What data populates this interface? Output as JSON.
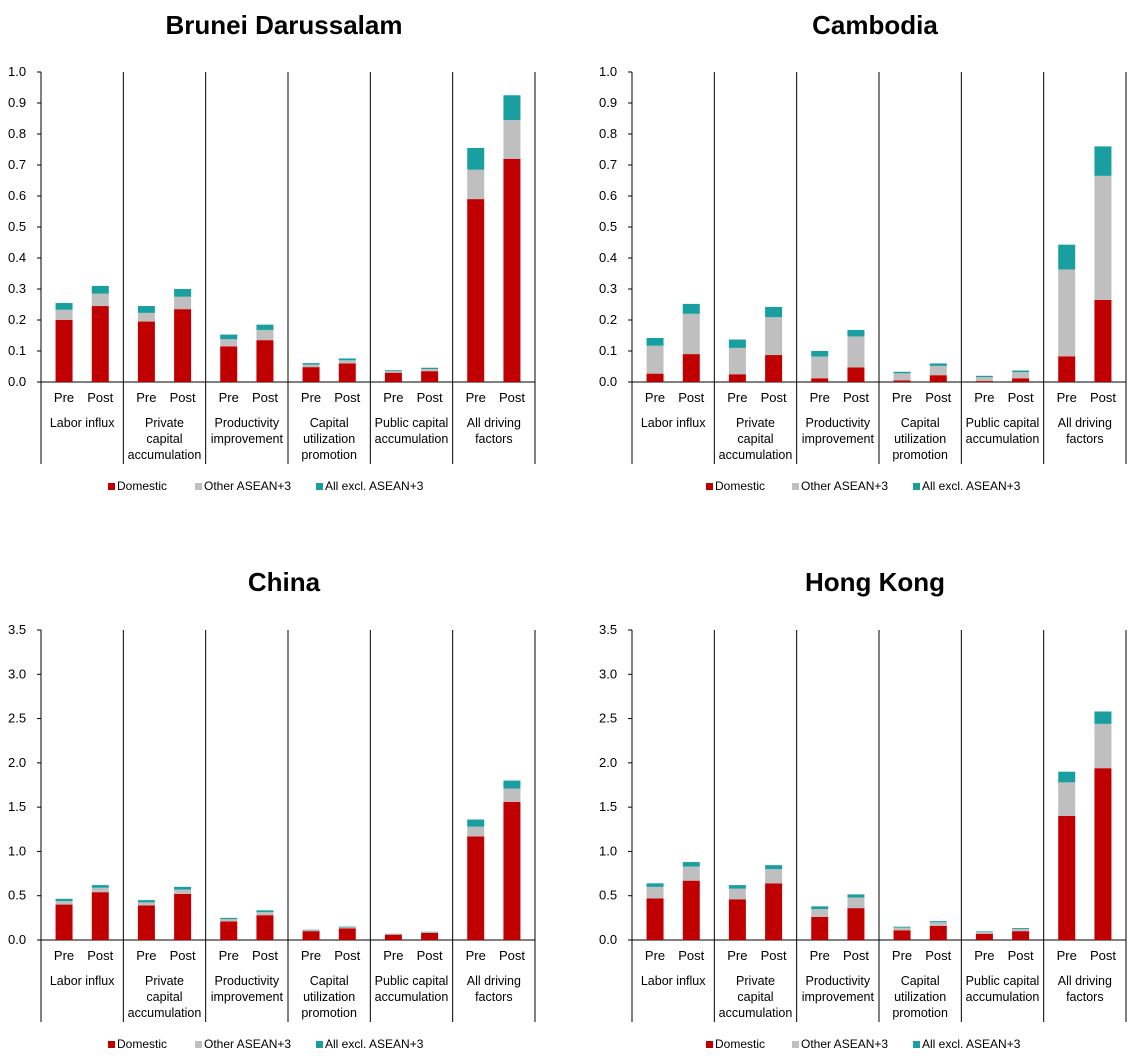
{
  "chart_data": [
    {
      "type": "bar",
      "stacked": true,
      "title": "Brunei Darussalam",
      "groups": [
        "Labor influx",
        "Private capital accumulation",
        "Productivity improvement",
        "Capital utilization promotion",
        "Public capital accumulation",
        "All driving factors"
      ],
      "subcategories": [
        "Pre",
        "Post"
      ],
      "ylim": [
        0,
        1.0
      ],
      "yticks": [
        "0.0",
        "0.1",
        "0.2",
        "0.3",
        "0.4",
        "0.5",
        "0.6",
        "0.7",
        "0.8",
        "0.9",
        "1.0"
      ],
      "series": [
        {
          "name": "Domestic",
          "color": "#c00000",
          "values": [
            0.2,
            0.245,
            0.195,
            0.235,
            0.115,
            0.135,
            0.048,
            0.06,
            0.03,
            0.035,
            0.59,
            0.72
          ]
        },
        {
          "name": "Other ASEAN+3",
          "color": "#bfbfbf",
          "values": [
            0.033,
            0.04,
            0.028,
            0.04,
            0.023,
            0.033,
            0.008,
            0.01,
            0.005,
            0.007,
            0.095,
            0.125
          ]
        },
        {
          "name": "All excl. ASEAN+3",
          "color": "#1a9fa0",
          "values": [
            0.022,
            0.025,
            0.022,
            0.025,
            0.015,
            0.017,
            0.005,
            0.006,
            0.003,
            0.004,
            0.07,
            0.08
          ]
        }
      ],
      "legend": "bottom"
    },
    {
      "type": "bar",
      "stacked": true,
      "title": "Cambodia",
      "groups": [
        "Labor influx",
        "Private capital accumulation",
        "Productivity improvement",
        "Capital utilization promotion",
        "Public capital accumulation",
        "All driving factors"
      ],
      "subcategories": [
        "Pre",
        "Post"
      ],
      "ylim": [
        0,
        1.0
      ],
      "yticks": [
        "0.0",
        "0.1",
        "0.2",
        "0.3",
        "0.4",
        "0.5",
        "0.6",
        "0.7",
        "0.8",
        "0.9",
        "1.0"
      ],
      "series": [
        {
          "name": "Domestic",
          "color": "#c00000",
          "values": [
            0.027,
            0.09,
            0.025,
            0.087,
            0.012,
            0.047,
            0.005,
            0.022,
            0.003,
            0.012,
            0.083,
            0.265
          ]
        },
        {
          "name": "Other ASEAN+3",
          "color": "#bfbfbf",
          "values": [
            0.09,
            0.13,
            0.085,
            0.122,
            0.07,
            0.1,
            0.023,
            0.03,
            0.013,
            0.02,
            0.28,
            0.4
          ]
        },
        {
          "name": "All excl. ASEAN+3",
          "color": "#1a9fa0",
          "values": [
            0.025,
            0.032,
            0.027,
            0.033,
            0.018,
            0.021,
            0.005,
            0.008,
            0.004,
            0.005,
            0.08,
            0.095
          ]
        }
      ],
      "legend": "bottom"
    },
    {
      "type": "bar",
      "stacked": true,
      "title": "China",
      "groups": [
        "Labor influx",
        "Private capital accumulation",
        "Productivity improvement",
        "Capital utilization promotion",
        "Public capital accumulation",
        "All driving factors"
      ],
      "subcategories": [
        "Pre",
        "Post"
      ],
      "ylim": [
        0,
        3.5
      ],
      "yticks": [
        "0.0",
        "0.5",
        "1.0",
        "1.5",
        "2.0",
        "2.5",
        "3.0",
        "3.5"
      ],
      "series": [
        {
          "name": "Domestic",
          "color": "#c00000",
          "values": [
            0.4,
            0.54,
            0.39,
            0.52,
            0.21,
            0.28,
            0.1,
            0.13,
            0.06,
            0.08,
            1.17,
            1.56
          ]
        },
        {
          "name": "Other ASEAN+3",
          "color": "#bfbfbf",
          "values": [
            0.04,
            0.05,
            0.035,
            0.05,
            0.025,
            0.035,
            0.01,
            0.013,
            0.006,
            0.008,
            0.11,
            0.15
          ]
        },
        {
          "name": "All excl. ASEAN+3",
          "color": "#1a9fa0",
          "values": [
            0.025,
            0.03,
            0.025,
            0.03,
            0.015,
            0.02,
            0.006,
            0.008,
            0.004,
            0.005,
            0.08,
            0.09
          ]
        }
      ],
      "legend": "bottom"
    },
    {
      "type": "bar",
      "stacked": true,
      "title": "Hong Kong",
      "groups": [
        "Labor influx",
        "Private capital accumulation",
        "Productivity improvement",
        "Capital utilization promotion",
        "Public capital accumulation",
        "All driving factors"
      ],
      "subcategories": [
        "Pre",
        "Post"
      ],
      "ylim": [
        0,
        3.5
      ],
      "yticks": [
        "0.0",
        "0.5",
        "1.0",
        "1.5",
        "2.0",
        "2.5",
        "3.0",
        "3.5"
      ],
      "series": [
        {
          "name": "Domestic",
          "color": "#c00000",
          "values": [
            0.47,
            0.67,
            0.46,
            0.64,
            0.26,
            0.36,
            0.11,
            0.16,
            0.07,
            0.1,
            1.4,
            1.94
          ]
        },
        {
          "name": "Other ASEAN+3",
          "color": "#bfbfbf",
          "values": [
            0.13,
            0.16,
            0.12,
            0.16,
            0.09,
            0.12,
            0.03,
            0.04,
            0.02,
            0.025,
            0.38,
            0.5
          ]
        },
        {
          "name": "All excl. ASEAN+3",
          "color": "#1a9fa0",
          "values": [
            0.04,
            0.05,
            0.04,
            0.045,
            0.03,
            0.035,
            0.01,
            0.013,
            0.007,
            0.01,
            0.12,
            0.14
          ]
        }
      ],
      "legend": "bottom"
    }
  ],
  "group_label_lines": [
    [
      "Labor influx"
    ],
    [
      "Private",
      "capital",
      "accumulation"
    ],
    [
      "Productivity",
      "improvement"
    ],
    [
      "Capital",
      "utilization",
      "promotion"
    ],
    [
      "Public capital",
      "accumulation"
    ],
    [
      "All driving",
      "factors"
    ]
  ]
}
